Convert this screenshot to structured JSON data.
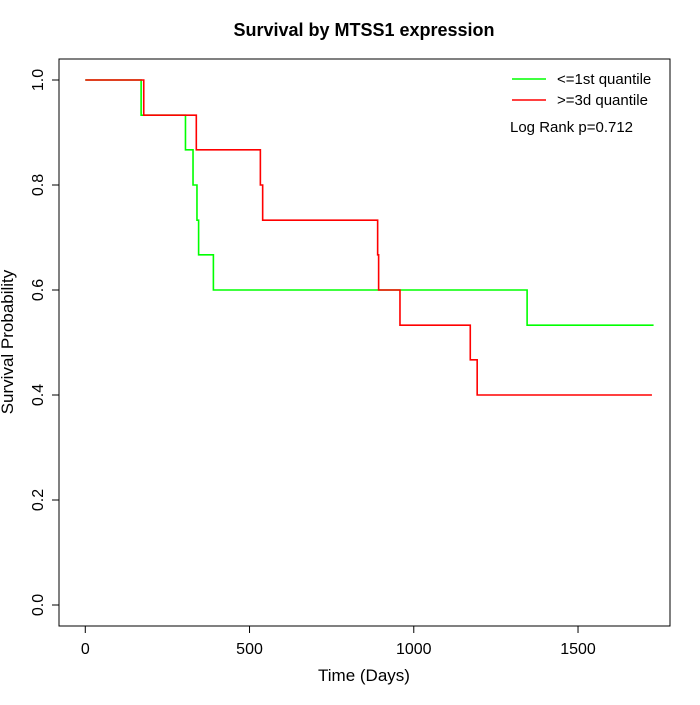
{
  "chart_data": {
    "type": "line",
    "step": true,
    "title": "Survival by MTSS1 expression",
    "xlabel": "Time (Days)",
    "ylabel": "Survival Probability",
    "xlim": [
      -80,
      1780
    ],
    "ylim": [
      -0.04,
      1.04
    ],
    "xticks": [
      0,
      500,
      1000,
      1500
    ],
    "yticks": [
      0.0,
      0.2,
      0.4,
      0.6,
      0.8,
      1.0
    ],
    "xtick_labels": [
      "0",
      "500",
      "1000",
      "1500"
    ],
    "ytick_labels": [
      "0.0",
      "0.2",
      "0.4",
      "0.6",
      "0.8",
      "1.0"
    ],
    "grid": false,
    "legend_position": "top-right",
    "annotation": "Log Rank p=0.712",
    "series": [
      {
        "name": "<=1st quantile",
        "color": "#00ff00",
        "x": [
          0,
          170,
          305,
          328,
          340,
          345,
          390,
          1345,
          1730
        ],
        "y": [
          1.0,
          0.933,
          0.867,
          0.8,
          0.733,
          0.667,
          0.6,
          0.533,
          0.533
        ]
      },
      {
        "name": ">=3d quantile",
        "color": "#ff0000",
        "x": [
          0,
          178,
          338,
          533,
          540,
          890,
          893,
          958,
          1172,
          1193,
          1725
        ],
        "y": [
          1.0,
          0.933,
          0.867,
          0.8,
          0.733,
          0.667,
          0.6,
          0.533,
          0.467,
          0.4,
          0.4
        ]
      }
    ]
  }
}
